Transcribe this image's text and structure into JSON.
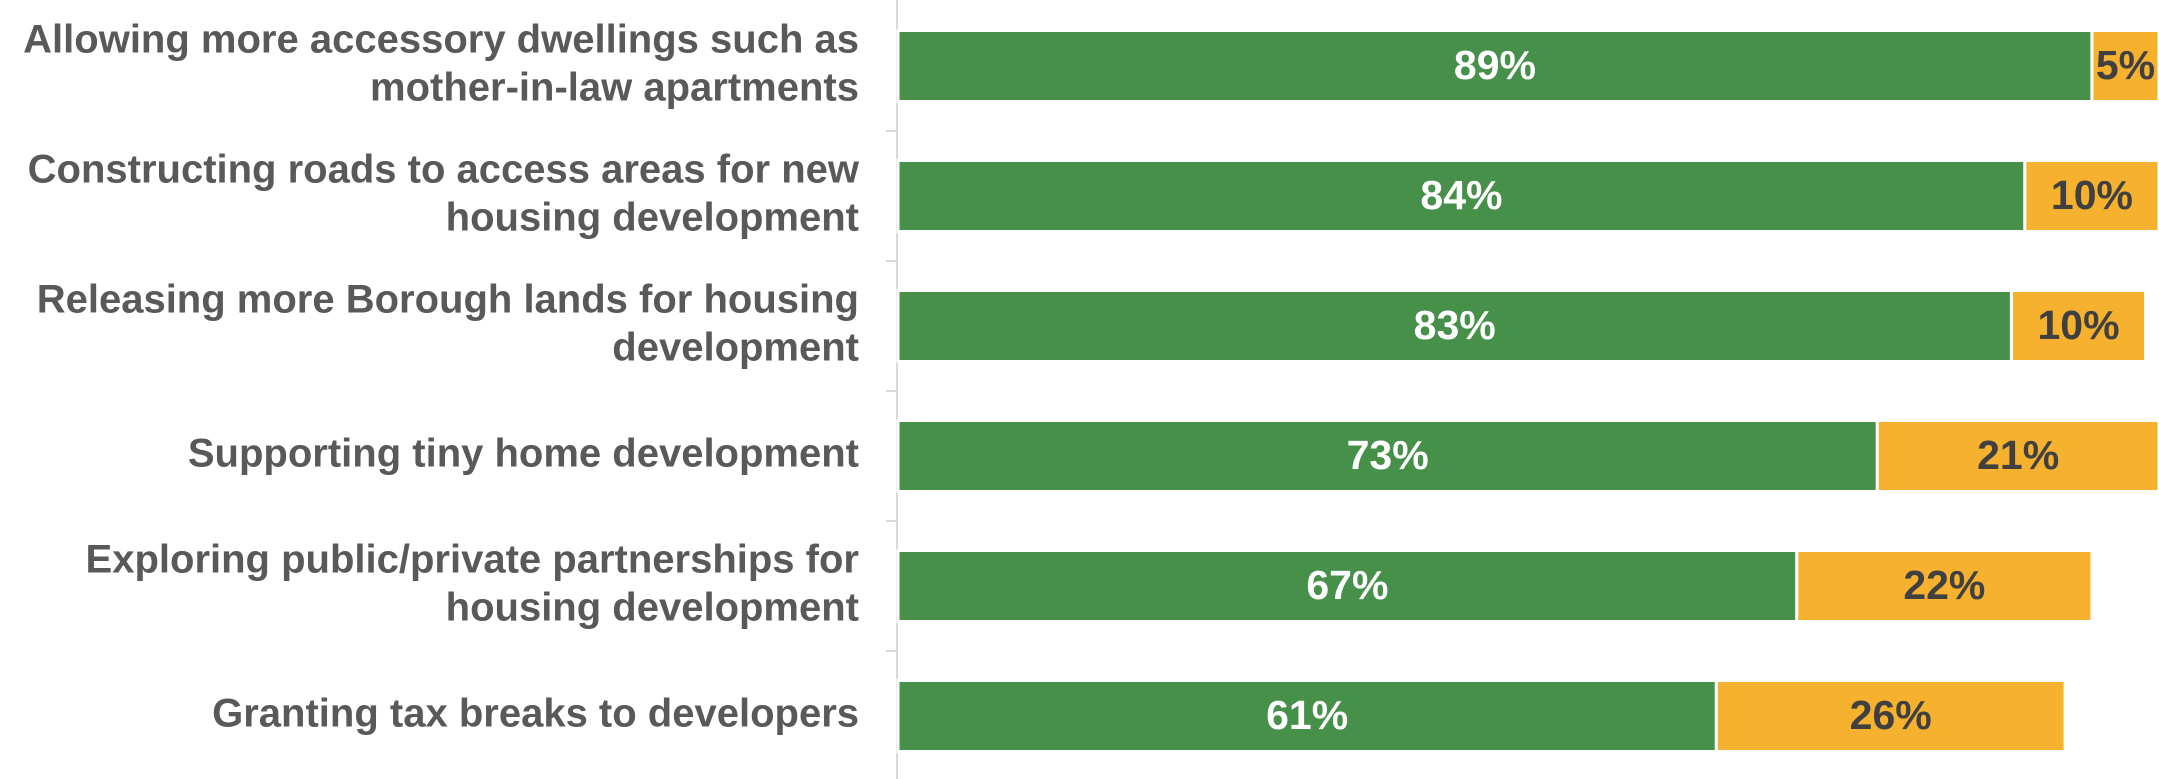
{
  "chart_data": {
    "type": "stacked-bar-horizontal",
    "categories": [
      [
        "Allowing more accessory dwellings such as",
        "mother-in-law apartments"
      ],
      [
        "Constructing roads to access areas for new",
        "housing development"
      ],
      [
        "Releasing more Borough lands for housing",
        "development"
      ],
      [
        "Supporting tiny home development"
      ],
      [
        "Exploring public/private partnerships for",
        "housing development"
      ],
      [
        "Granting tax breaks to developers"
      ]
    ],
    "series": [
      {
        "color": "#46904a",
        "label_color": "#ffffff",
        "values": [
          89,
          84,
          83,
          73,
          67,
          61
        ],
        "value_labels": [
          "89%",
          "84%",
          "83%",
          "73%",
          "67%",
          "61%"
        ]
      },
      {
        "color": "#f6b12f",
        "label_color": "#404040",
        "values": [
          5,
          10,
          10,
          21,
          22,
          26
        ],
        "value_labels": [
          "5%",
          "10%",
          "10%",
          "21%",
          "22%",
          "26%"
        ]
      }
    ],
    "xlim": [
      0,
      94
    ]
  }
}
